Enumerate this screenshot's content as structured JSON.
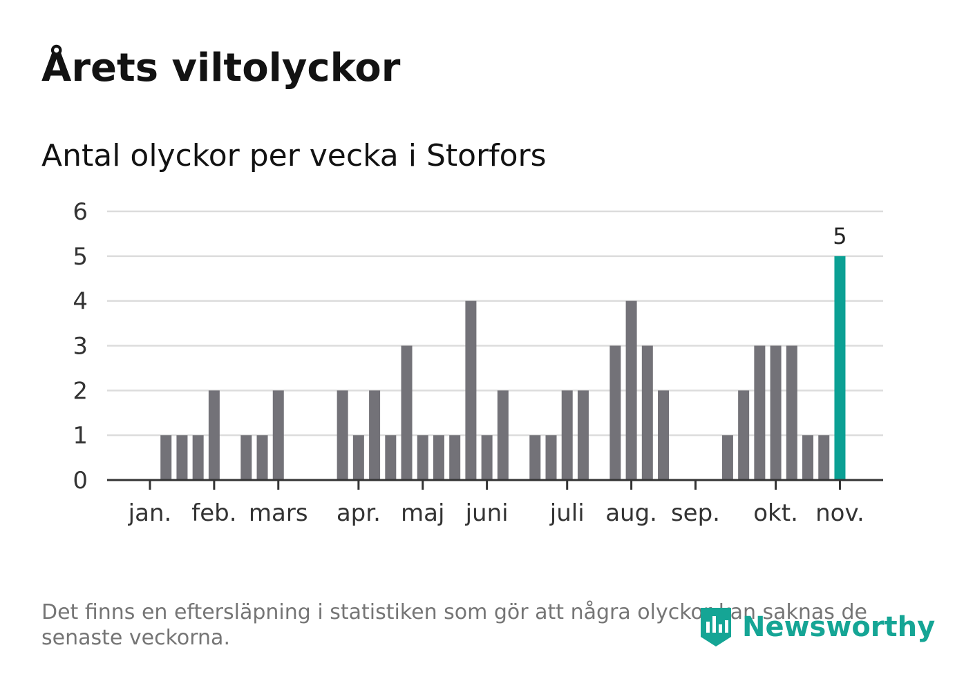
{
  "header": {
    "title": "Årets viltolyckor",
    "subtitle": "Antal olyckor per vecka i Storfors"
  },
  "footer": {
    "note": "Det finns en eftersläpning i statistiken som gör att några olyckor kan saknas de senaste veckorna.",
    "brand": "Newsworthy"
  },
  "colors": {
    "bar": "#737278",
    "highlight": "#0ba094",
    "grid": "#dcdcdc",
    "axis": "#333333",
    "text": "#333333",
    "brand": "#15a595"
  },
  "chart_data": {
    "type": "bar",
    "title": "Antal olyckor per vecka i Storfors",
    "xlabel": "",
    "ylabel": "",
    "ylim": [
      0,
      6
    ],
    "yticks": [
      0,
      1,
      2,
      3,
      4,
      5,
      6
    ],
    "grid": true,
    "week_start": 1,
    "values": [
      0,
      1,
      1,
      1,
      2,
      0,
      1,
      1,
      2,
      0,
      0,
      0,
      2,
      1,
      2,
      1,
      3,
      1,
      1,
      1,
      4,
      1,
      2,
      0,
      1,
      1,
      2,
      2,
      0,
      3,
      4,
      3,
      2,
      0,
      0,
      0,
      1,
      2,
      3,
      3,
      3,
      1,
      1,
      5
    ],
    "month_ticks": [
      {
        "label": "jan.",
        "week": 1
      },
      {
        "label": "feb.",
        "week": 5
      },
      {
        "label": "mars",
        "week": 9
      },
      {
        "label": "apr.",
        "week": 14
      },
      {
        "label": "maj",
        "week": 18
      },
      {
        "label": "juni",
        "week": 22
      },
      {
        "label": "juli",
        "week": 27
      },
      {
        "label": "aug.",
        "week": 31
      },
      {
        "label": "sep.",
        "week": 35
      },
      {
        "label": "okt.",
        "week": 40
      },
      {
        "label": "nov.",
        "week": 44
      }
    ],
    "highlight": {
      "week": 44,
      "label": "5"
    }
  }
}
